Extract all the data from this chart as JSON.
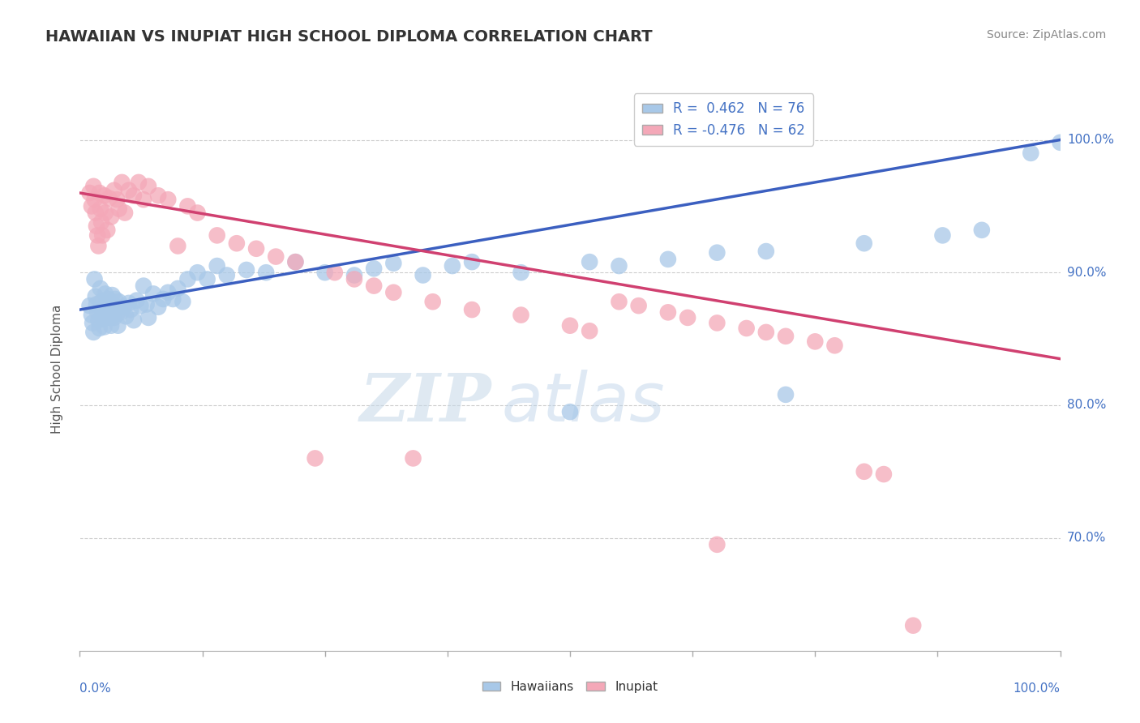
{
  "title": "HAWAIIAN VS INUPIAT HIGH SCHOOL DIPLOMA CORRELATION CHART",
  "source_text": "Source: ZipAtlas.com",
  "ylabel": "High School Diploma",
  "xlim": [
    0.0,
    1.0
  ],
  "ylim": [
    0.615,
    1.04
  ],
  "ytick_labels": [
    "70.0%",
    "80.0%",
    "90.0%",
    "100.0%"
  ],
  "ytick_values": [
    0.7,
    0.8,
    0.9,
    1.0
  ],
  "hawaiian_color": "#A8C8E8",
  "inupiat_color": "#F4A8B8",
  "hawaiian_line_color": "#3B5FC0",
  "inupiat_line_color": "#D04070",
  "title_color": "#333333",
  "label_color": "#4472C4",
  "hawaiian_R": 0.462,
  "hawaiian_N": 76,
  "inupiat_R": -0.476,
  "inupiat_N": 62,
  "legend_label1": "Hawaiians",
  "legend_label2": "Inupiat",
  "watermark_zip": "ZIP",
  "watermark_atlas": "atlas",
  "background_color": "#ffffff",
  "grid_color": "#CCCCCC",
  "hawaiian_scatter": [
    [
      0.01,
      0.875
    ],
    [
      0.012,
      0.868
    ],
    [
      0.013,
      0.862
    ],
    [
      0.014,
      0.855
    ],
    [
      0.015,
      0.895
    ],
    [
      0.016,
      0.882
    ],
    [
      0.017,
      0.876
    ],
    [
      0.018,
      0.87
    ],
    [
      0.019,
      0.864
    ],
    [
      0.02,
      0.858
    ],
    [
      0.021,
      0.888
    ],
    [
      0.022,
      0.878
    ],
    [
      0.023,
      0.872
    ],
    [
      0.024,
      0.865
    ],
    [
      0.025,
      0.859
    ],
    [
      0.026,
      0.884
    ],
    [
      0.027,
      0.876
    ],
    [
      0.028,
      0.869
    ],
    [
      0.029,
      0.88
    ],
    [
      0.03,
      0.873
    ],
    [
      0.031,
      0.866
    ],
    [
      0.032,
      0.86
    ],
    [
      0.033,
      0.883
    ],
    [
      0.034,
      0.876
    ],
    [
      0.035,
      0.866
    ],
    [
      0.036,
      0.88
    ],
    [
      0.037,
      0.873
    ],
    [
      0.038,
      0.869
    ],
    [
      0.039,
      0.86
    ],
    [
      0.04,
      0.878
    ],
    [
      0.042,
      0.87
    ],
    [
      0.045,
      0.874
    ],
    [
      0.047,
      0.867
    ],
    [
      0.05,
      0.877
    ],
    [
      0.052,
      0.872
    ],
    [
      0.055,
      0.864
    ],
    [
      0.058,
      0.879
    ],
    [
      0.062,
      0.875
    ],
    [
      0.065,
      0.89
    ],
    [
      0.068,
      0.876
    ],
    [
      0.07,
      0.866
    ],
    [
      0.075,
      0.884
    ],
    [
      0.08,
      0.874
    ],
    [
      0.085,
      0.88
    ],
    [
      0.09,
      0.885
    ],
    [
      0.095,
      0.88
    ],
    [
      0.1,
      0.888
    ],
    [
      0.105,
      0.878
    ],
    [
      0.11,
      0.895
    ],
    [
      0.12,
      0.9
    ],
    [
      0.13,
      0.895
    ],
    [
      0.14,
      0.905
    ],
    [
      0.15,
      0.898
    ],
    [
      0.17,
      0.902
    ],
    [
      0.19,
      0.9
    ],
    [
      0.22,
      0.908
    ],
    [
      0.25,
      0.9
    ],
    [
      0.28,
      0.898
    ],
    [
      0.3,
      0.903
    ],
    [
      0.32,
      0.907
    ],
    [
      0.35,
      0.898
    ],
    [
      0.38,
      0.905
    ],
    [
      0.4,
      0.908
    ],
    [
      0.45,
      0.9
    ],
    [
      0.5,
      0.795
    ],
    [
      0.52,
      0.908
    ],
    [
      0.55,
      0.905
    ],
    [
      0.6,
      0.91
    ],
    [
      0.65,
      0.915
    ],
    [
      0.7,
      0.916
    ],
    [
      0.72,
      0.808
    ],
    [
      0.8,
      0.922
    ],
    [
      0.88,
      0.928
    ],
    [
      0.92,
      0.932
    ],
    [
      0.97,
      0.99
    ],
    [
      1.0,
      0.998
    ]
  ],
  "inupiat_scatter": [
    [
      0.01,
      0.96
    ],
    [
      0.012,
      0.95
    ],
    [
      0.014,
      0.965
    ],
    [
      0.015,
      0.955
    ],
    [
      0.016,
      0.945
    ],
    [
      0.017,
      0.935
    ],
    [
      0.018,
      0.928
    ],
    [
      0.019,
      0.92
    ],
    [
      0.02,
      0.96
    ],
    [
      0.021,
      0.948
    ],
    [
      0.022,
      0.938
    ],
    [
      0.023,
      0.928
    ],
    [
      0.025,
      0.958
    ],
    [
      0.026,
      0.945
    ],
    [
      0.028,
      0.932
    ],
    [
      0.03,
      0.956
    ],
    [
      0.032,
      0.942
    ],
    [
      0.035,
      0.962
    ],
    [
      0.038,
      0.955
    ],
    [
      0.04,
      0.948
    ],
    [
      0.043,
      0.968
    ],
    [
      0.046,
      0.945
    ],
    [
      0.05,
      0.962
    ],
    [
      0.055,
      0.958
    ],
    [
      0.06,
      0.968
    ],
    [
      0.065,
      0.955
    ],
    [
      0.07,
      0.965
    ],
    [
      0.08,
      0.958
    ],
    [
      0.09,
      0.955
    ],
    [
      0.1,
      0.92
    ],
    [
      0.11,
      0.95
    ],
    [
      0.12,
      0.945
    ],
    [
      0.14,
      0.928
    ],
    [
      0.16,
      0.922
    ],
    [
      0.18,
      0.918
    ],
    [
      0.2,
      0.912
    ],
    [
      0.22,
      0.908
    ],
    [
      0.24,
      0.76
    ],
    [
      0.26,
      0.9
    ],
    [
      0.28,
      0.895
    ],
    [
      0.3,
      0.89
    ],
    [
      0.32,
      0.885
    ],
    [
      0.34,
      0.76
    ],
    [
      0.36,
      0.878
    ],
    [
      0.4,
      0.872
    ],
    [
      0.45,
      0.868
    ],
    [
      0.5,
      0.86
    ],
    [
      0.52,
      0.856
    ],
    [
      0.55,
      0.878
    ],
    [
      0.57,
      0.875
    ],
    [
      0.6,
      0.87
    ],
    [
      0.62,
      0.866
    ],
    [
      0.65,
      0.862
    ],
    [
      0.68,
      0.858
    ],
    [
      0.7,
      0.855
    ],
    [
      0.72,
      0.852
    ],
    [
      0.75,
      0.848
    ],
    [
      0.77,
      0.845
    ],
    [
      0.8,
      0.75
    ],
    [
      0.82,
      0.748
    ],
    [
      0.65,
      0.695
    ],
    [
      0.85,
      0.634
    ]
  ]
}
